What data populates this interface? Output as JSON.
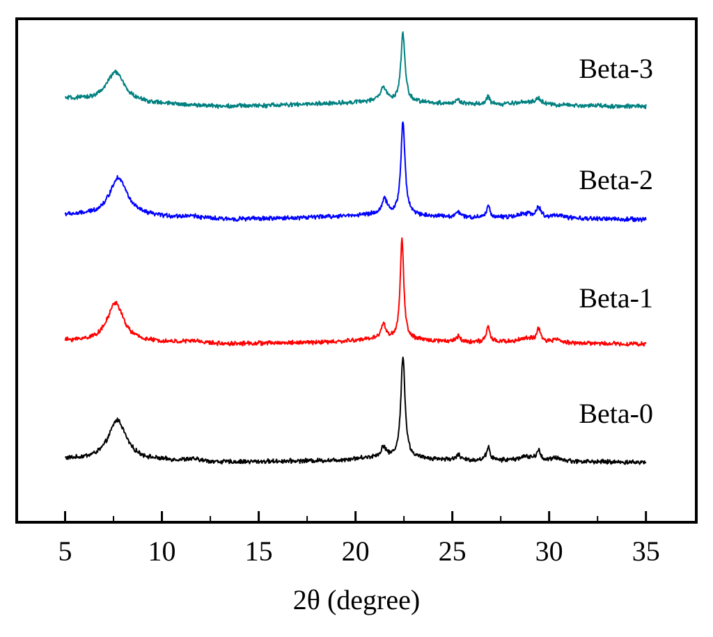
{
  "chart_data": {
    "type": "line",
    "title": "",
    "xlabel": "2θ (degree)",
    "ylabel": "",
    "xlim": [
      2.5,
      37.6
    ],
    "xticks": [
      5,
      10,
      15,
      20,
      25,
      30,
      35
    ],
    "tick_labels": [
      "5",
      "10",
      "15",
      "20",
      "25",
      "30",
      "35"
    ],
    "yaxis_shown": false,
    "grid": false,
    "legend": "labels beside each trace, right side",
    "series": [
      {
        "name": "Beta-0",
        "color": "#000000",
        "offset": 0.0,
        "baseline": [
          [
            5,
            0.03
          ],
          [
            10,
            0.015
          ],
          [
            13,
            0.0
          ],
          [
            16,
            0.01
          ],
          [
            19,
            0.02
          ],
          [
            21,
            0.05
          ],
          [
            26,
            0.02
          ],
          [
            35,
            0.0
          ]
        ],
        "peaks": [
          [
            7.7,
            0.39,
            0.55
          ],
          [
            11.6,
            0.02,
            0.6
          ],
          [
            21.45,
            0.1,
            0.15
          ],
          [
            22.45,
            0.99,
            0.13
          ],
          [
            25.3,
            0.05,
            0.12
          ],
          [
            26.85,
            0.13,
            0.11
          ],
          [
            28.8,
            0.04,
            0.5
          ],
          [
            29.45,
            0.09,
            0.12
          ],
          [
            30.4,
            0.03,
            0.3
          ]
        ]
      },
      {
        "name": "Beta-1",
        "color": "#ff0000",
        "offset": 1.15,
        "baseline": [
          [
            5,
            0.03
          ],
          [
            10,
            0.015
          ],
          [
            13,
            0.0
          ],
          [
            16,
            0.01
          ],
          [
            19,
            0.02
          ],
          [
            21,
            0.05
          ],
          [
            26,
            0.02
          ],
          [
            35,
            0.0
          ]
        ],
        "peaks": [
          [
            7.6,
            0.38,
            0.5
          ],
          [
            11.7,
            0.02,
            0.6
          ],
          [
            21.45,
            0.14,
            0.15
          ],
          [
            22.4,
            0.99,
            0.11
          ],
          [
            25.3,
            0.05,
            0.12
          ],
          [
            26.85,
            0.14,
            0.11
          ],
          [
            28.8,
            0.04,
            0.5
          ],
          [
            29.45,
            0.12,
            0.12
          ],
          [
            30.4,
            0.03,
            0.3
          ]
        ]
      },
      {
        "name": "Beta-2",
        "color": "#0000ff",
        "offset": 2.36,
        "baseline": [
          [
            5,
            0.04
          ],
          [
            10,
            0.02
          ],
          [
            13,
            0.0
          ],
          [
            16,
            0.01
          ],
          [
            19,
            0.03
          ],
          [
            21,
            0.05
          ],
          [
            26,
            0.02
          ],
          [
            35,
            0.0
          ]
        ],
        "peaks": [
          [
            7.75,
            0.38,
            0.55
          ],
          [
            11.6,
            0.02,
            0.6
          ],
          [
            21.5,
            0.14,
            0.17
          ],
          [
            22.45,
            0.9,
            0.13
          ],
          [
            25.3,
            0.05,
            0.12
          ],
          [
            26.85,
            0.11,
            0.11
          ],
          [
            28.8,
            0.04,
            0.5
          ],
          [
            29.45,
            0.09,
            0.15
          ],
          [
            30.4,
            0.03,
            0.3
          ]
        ]
      },
      {
        "name": "Beta-3",
        "color": "#008080",
        "offset": 3.46,
        "baseline": [
          [
            5,
            0.07
          ],
          [
            10,
            0.02
          ],
          [
            13,
            0.0
          ],
          [
            16,
            0.01
          ],
          [
            19,
            0.03
          ],
          [
            21,
            0.05
          ],
          [
            26,
            0.02
          ],
          [
            35,
            0.0
          ]
        ],
        "peaks": [
          [
            7.6,
            0.29,
            0.55
          ],
          [
            21.45,
            0.14,
            0.17
          ],
          [
            22.45,
            0.66,
            0.13
          ],
          [
            25.3,
            0.04,
            0.12
          ],
          [
            26.85,
            0.07,
            0.11
          ],
          [
            28.8,
            0.03,
            0.5
          ],
          [
            29.45,
            0.06,
            0.15
          ]
        ]
      }
    ]
  }
}
